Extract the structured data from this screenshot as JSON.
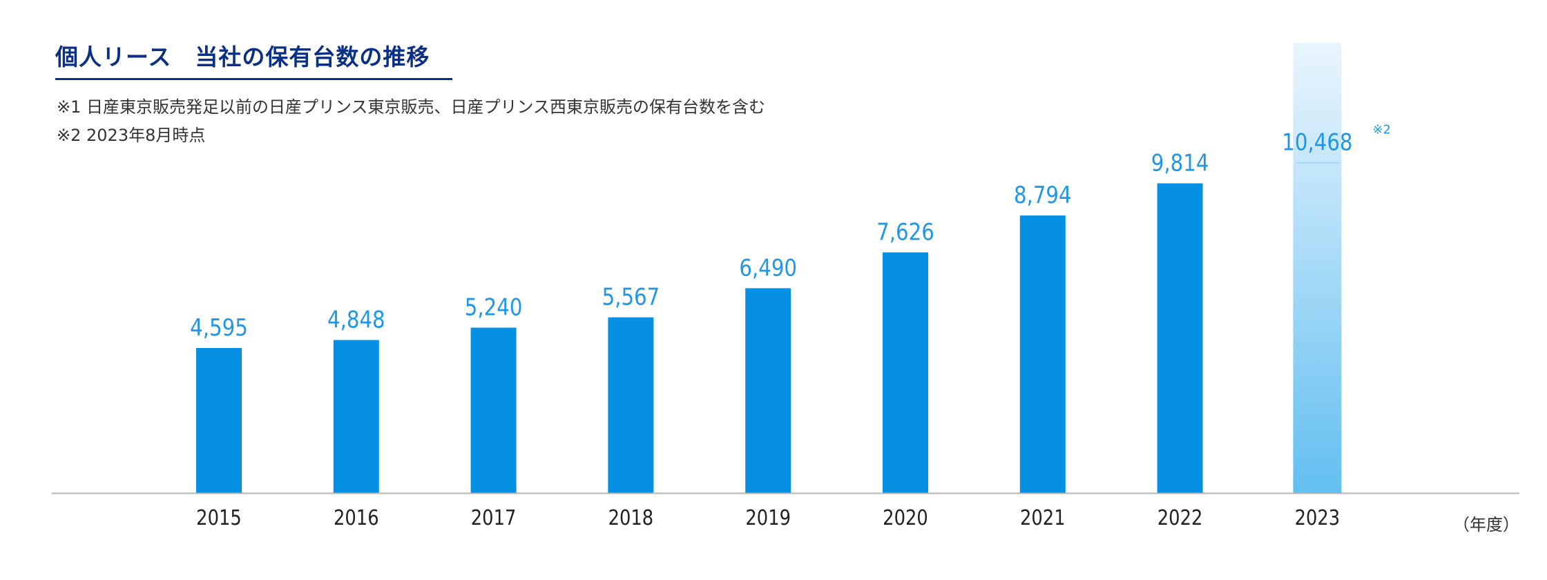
{
  "title": "個人リース　当社の保有台数の推移",
  "notes": [
    "※1 日産東京販売発足以前の日産プリンス東京販売、日産プリンス西東京販売の保有台数を含む",
    "※2 2023年8月時点"
  ],
  "unit_label": "（年度）",
  "colors": {
    "title": "#0a2f87",
    "bar": "#0590e3",
    "label": "#1f97e6",
    "highlight_top": "#eaf5fd",
    "highlight_bottom": "#62bff0",
    "axis": "#b5b5b5"
  },
  "chart_data": {
    "type": "bar",
    "categories": [
      "2015",
      "2016",
      "2017",
      "2018",
      "2019",
      "2020",
      "2021",
      "2022",
      "2023"
    ],
    "values": [
      4595,
      4848,
      5240,
      5567,
      6490,
      7626,
      8794,
      9814,
      10468
    ],
    "data_labels": [
      "4,595",
      "4,848",
      "5,240",
      "5,567",
      "6,490",
      "7,626",
      "8,794",
      "9,814",
      "10,468"
    ],
    "highlight_index": 8,
    "highlight_note": "※2",
    "ylim": [
      0,
      10468
    ],
    "title": "",
    "xlabel": "",
    "ylabel": ""
  }
}
